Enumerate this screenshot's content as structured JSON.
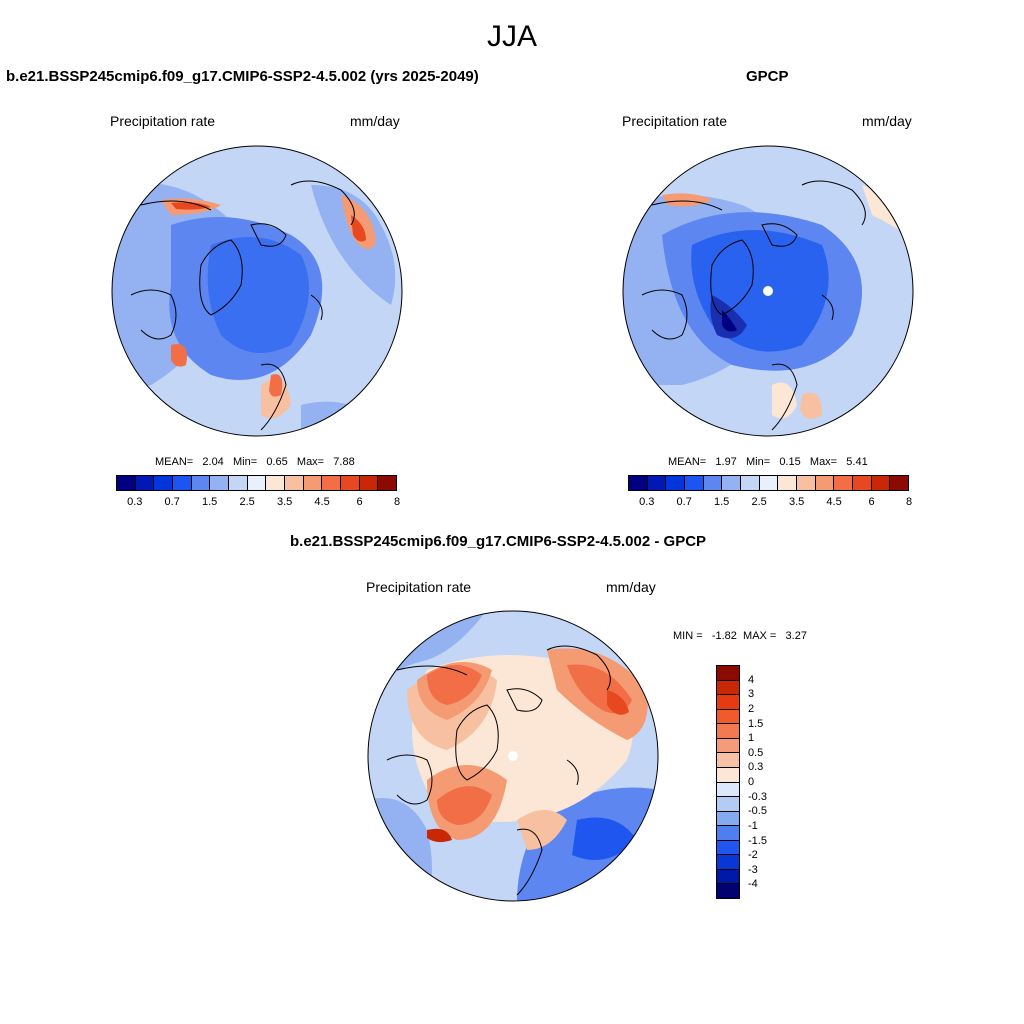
{
  "season": "JJA",
  "panels": {
    "model": {
      "title": "b.e21.BSSP245cmip6.f09_g17.CMIP6-SSP2-4.5.002 (yrs 2025-2049)",
      "variable": "Precipitation rate",
      "units": "mm/day",
      "mean_label": "MEAN=",
      "mean": "2.04",
      "min_label": "Min=",
      "min": "0.65",
      "max_label": "Max=",
      "max": "7.88"
    },
    "obs": {
      "title": "GPCP",
      "variable": "Precipitation rate",
      "units": "mm/day",
      "mean_label": "MEAN=",
      "mean": "1.97",
      "min_label": "Min=",
      "min": "0.15",
      "max_label": "Max=",
      "max": "5.41"
    },
    "diff": {
      "title": "b.e21.BSSP245cmip6.f09_g17.CMIP6-SSP2-4.5.002 - GPCP",
      "variable": "Precipitation rate",
      "units": "mm/day",
      "min_label": "MIN =",
      "min": "-1.82",
      "max_label": "MAX =",
      "max": "3.27"
    }
  },
  "colorbar_abs": {
    "colors": [
      "#000080",
      "#0018b4",
      "#0036dc",
      "#1c56f2",
      "#5d86f0",
      "#94b2f2",
      "#c3d6f6",
      "#e8f0fc",
      "#fce6d6",
      "#f7c0a0",
      "#f49b74",
      "#f16e46",
      "#e84820",
      "#c92806",
      "#8c0b00"
    ],
    "tick_labels": [
      "0.3",
      "0.7",
      "1.5",
      "2.5",
      "3.5",
      "4.5",
      "6",
      "8"
    ]
  },
  "colorbar_diff": {
    "colors_top_to_bottom": [
      "#8c0b00",
      "#c92806",
      "#e63a12",
      "#f05a2c",
      "#f27a52",
      "#f49c7a",
      "#f8c0a4",
      "#fce6d6",
      "#dae8fa",
      "#b4ccf4",
      "#86aaf0",
      "#4f7ef0",
      "#1f56f0",
      "#0a36d6",
      "#0018a8",
      "#000070"
    ],
    "tick_labels": [
      "4",
      "3",
      "2",
      "1.5",
      "1",
      "0.5",
      "0.3",
      "0",
      "-0.3",
      "-0.5",
      "-1",
      "-1.5",
      "-2",
      "-3",
      "-4"
    ]
  },
  "map_fills": {
    "model": {
      "base": "#c3d6f6",
      "bands": [
        "#94b2f2",
        "#5d86f0",
        "#3a6ff2"
      ],
      "hot": [
        "#f7c0a0",
        "#f16e46",
        "#e84820"
      ]
    },
    "obs": {
      "base": "#c3d6f6",
      "bands": [
        "#94b2f2",
        "#5d86f0",
        "#2a62f0"
      ],
      "hot": [
        "#fce6d6",
        "#f49b74",
        "#1a2fb0"
      ]
    },
    "diff": {
      "base": "#fce6d6",
      "bands": [
        "#f7c0a0",
        "#f49b74",
        "#f16e46"
      ],
      "hot": [
        "#94b2f2",
        "#5d86f0",
        "#c92806"
      ]
    }
  }
}
